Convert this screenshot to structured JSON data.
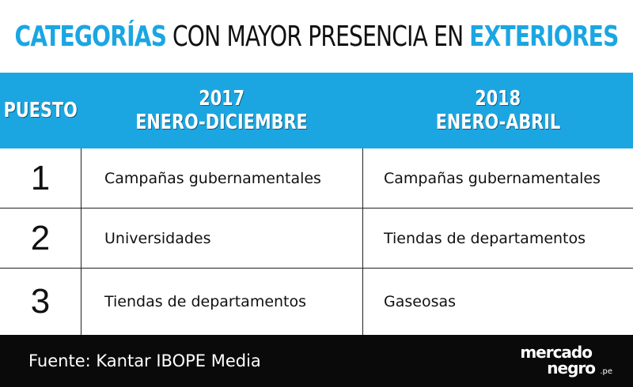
{
  "title": {
    "part1": "CATEGORÍAS",
    "part2": "CON MAYOR PRESENCIA EN",
    "part3": "EXTERIORES"
  },
  "header": {
    "col0": "PUESTO",
    "col1_year": "2017",
    "col1_period": "ENERO-DICIEMBRE",
    "col2_year": "2018",
    "col2_period": "ENERO-ABRIL"
  },
  "rows": [
    {
      "rank": "1",
      "y2017": "Campañas gubernamentales",
      "y2018": "Campañas gubernamentales"
    },
    {
      "rank": "2",
      "y2017": "Universidades",
      "y2018": "Tiendas de departamentos"
    },
    {
      "rank": "3",
      "y2017": "Tiendas de departamentos",
      "y2018": "Gaseosas"
    }
  ],
  "footer": {
    "source": "Fuente: Kantar IBOPE Media",
    "logo_line1": "mercado",
    "logo_line2": "negro",
    "logo_suffix": ".pe"
  },
  "colors": {
    "accent": "#1ba6e2",
    "footer_bg": "#0a0a0a",
    "text": "#111111"
  }
}
